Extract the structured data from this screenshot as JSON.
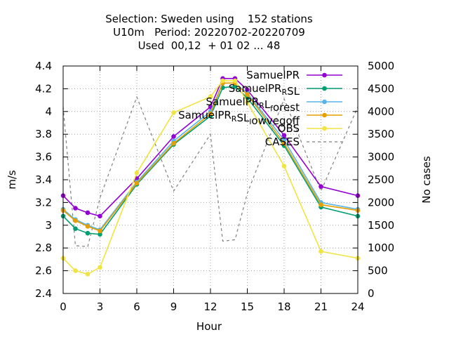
{
  "chart_data": {
    "type": "line",
    "title_lines": [
      "Selection: Sweden using    152 stations",
      "U10m   Period: 20220702-20220709",
      "Used  00,12  + 01 02 ... 48"
    ],
    "xlabel": "Hour",
    "ylabel": "m/s",
    "y2label": "No cases",
    "xlim": [
      0,
      24
    ],
    "ylim": [
      2.4,
      4.4
    ],
    "y2lim": [
      0,
      5000
    ],
    "xticks": [
      0,
      3,
      6,
      9,
      12,
      15,
      18,
      21,
      24
    ],
    "yticks": [
      2.4,
      2.6,
      2.8,
      3.0,
      3.2,
      3.4,
      3.6,
      3.8,
      4.0,
      4.2,
      4.4
    ],
    "ytick_labels": [
      "2.4",
      "2.6",
      "2.8",
      "3",
      "3.2",
      "3.4",
      "3.6",
      "3.8",
      "4",
      "4.2",
      "4.4"
    ],
    "y2ticks": [
      0,
      500,
      1000,
      1500,
      2000,
      2500,
      3000,
      3500,
      4000,
      4500,
      5000
    ],
    "grid": true,
    "legend_position": "top-right",
    "series": [
      {
        "name": "SamuelPR",
        "legend_parts": [
          {
            "t": "SamuelPR"
          }
        ],
        "color": "#9400d3",
        "marker": "circle",
        "axis": "y",
        "x": [
          0,
          1,
          2,
          3,
          6,
          9,
          12,
          13,
          14,
          15,
          18,
          21,
          24
        ],
        "values": [
          3.26,
          3.15,
          3.11,
          3.08,
          3.41,
          3.78,
          4.04,
          4.29,
          4.29,
          4.19,
          3.79,
          3.34,
          3.26
        ]
      },
      {
        "name": "SamuelPR_RSL",
        "legend_parts": [
          {
            "t": "SamuelPR"
          },
          {
            "t": "R",
            "sub": true
          },
          {
            "t": "SL"
          }
        ],
        "color": "#009e73",
        "marker": "circle",
        "axis": "y",
        "x": [
          0,
          1,
          2,
          3,
          6,
          9,
          12,
          13,
          14,
          15,
          18,
          21,
          24
        ],
        "values": [
          3.08,
          2.97,
          2.93,
          2.92,
          3.36,
          3.71,
          3.96,
          4.21,
          4.22,
          4.12,
          3.7,
          3.16,
          3.08
        ]
      },
      {
        "name": "SamuelPR_RL_forest",
        "legend_parts": [
          {
            "t": "SamuelPR"
          },
          {
            "t": "R",
            "sub": true
          },
          {
            "t": "L"
          },
          {
            "t": "f",
            "sub": true
          },
          {
            "t": "orest"
          }
        ],
        "color": "#56b4e9",
        "marker": "circle",
        "axis": "y",
        "x": [
          0,
          1,
          2,
          3,
          6,
          9,
          12,
          13,
          14,
          15,
          18,
          21,
          24
        ],
        "values": [
          3.14,
          3.05,
          3.0,
          2.96,
          3.38,
          3.74,
          4.0,
          4.25,
          4.25,
          4.16,
          3.75,
          3.2,
          3.14
        ]
      },
      {
        "name": "SamuelPR_RSL_lowvegoff",
        "legend_parts": [
          {
            "t": "SamuelPR"
          },
          {
            "t": "R",
            "sub": true
          },
          {
            "t": "SL"
          },
          {
            "t": "l",
            "sub": true
          },
          {
            "t": "owvegoff"
          }
        ],
        "color": "#e69f00",
        "marker": "circle",
        "axis": "y",
        "x": [
          0,
          1,
          2,
          3,
          6,
          9,
          12,
          13,
          14,
          15,
          18,
          21,
          24
        ],
        "values": [
          3.13,
          3.04,
          2.99,
          2.95,
          3.37,
          3.72,
          3.98,
          4.25,
          4.25,
          4.15,
          3.72,
          3.18,
          3.13
        ]
      },
      {
        "name": "OBS",
        "legend_parts": [
          {
            "t": "OBS"
          }
        ],
        "color": "#f0e442",
        "marker": "circle",
        "axis": "y",
        "x": [
          0,
          1,
          2,
          3,
          6,
          9,
          12,
          13,
          14,
          15,
          18,
          21,
          24
        ],
        "values": [
          2.71,
          2.6,
          2.57,
          2.63,
          3.46,
          3.99,
          4.13,
          4.27,
          4.27,
          4.08,
          3.52,
          2.77,
          2.71
        ]
      },
      {
        "name": "CASES",
        "legend_parts": [
          {
            "t": "CASES"
          }
        ],
        "color": "#808080",
        "marker": "none",
        "dashed": true,
        "axis": "y2",
        "x": [
          0,
          1,
          2,
          3,
          6,
          9,
          12,
          13,
          14,
          15,
          18,
          21,
          24
        ],
        "values": [
          4100,
          1050,
          1030,
          2100,
          4320,
          2250,
          3500,
          1150,
          1180,
          2200,
          4280,
          2250,
          4100
        ]
      }
    ]
  }
}
